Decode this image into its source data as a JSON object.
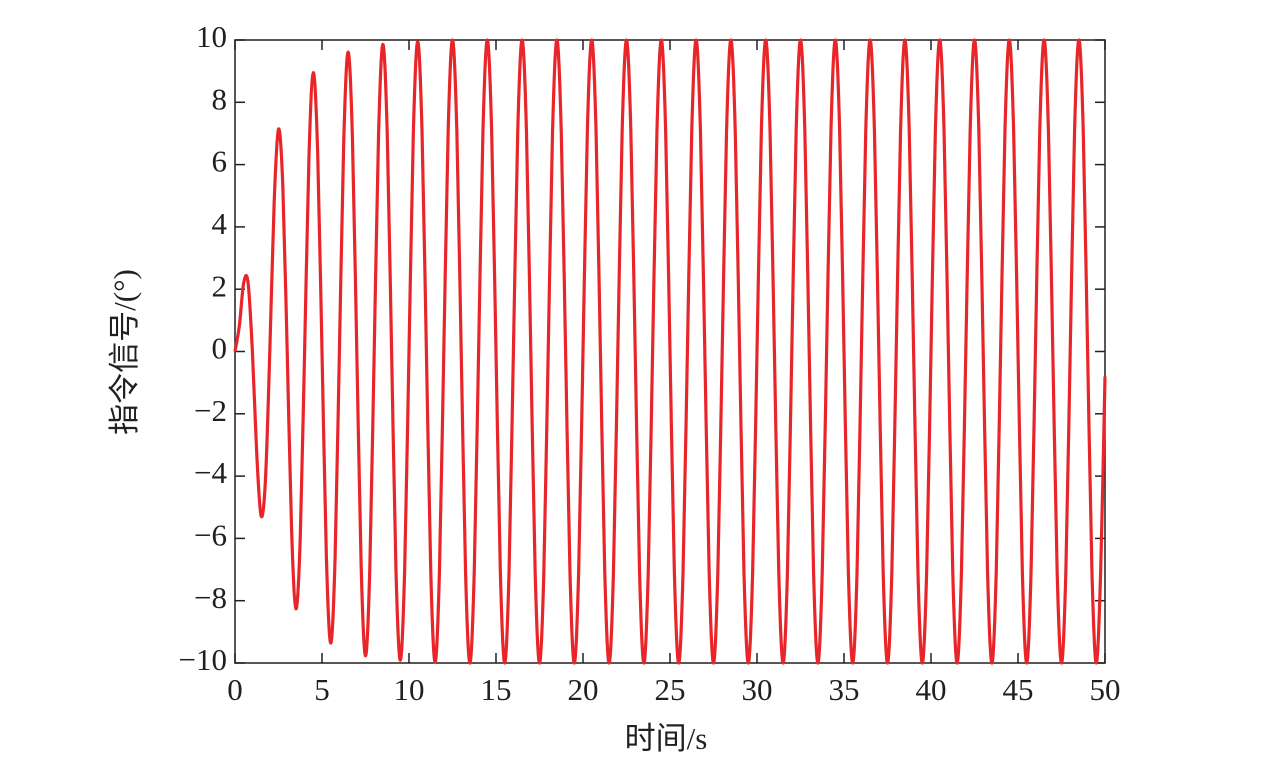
{
  "chart_data": {
    "type": "line",
    "xlabel": "时间/s",
    "ylabel": "指令信号/(°)",
    "x": [
      0,
      0.25,
      0.5,
      0.75,
      1,
      1.25,
      1.5,
      1.75,
      2,
      2.25,
      2.5,
      2.75,
      3,
      3.25,
      3.5,
      3.75,
      4,
      4.25,
      4.5,
      4.75,
      5,
      5.25,
      5.5,
      5.75,
      6,
      6.25,
      6.5,
      6.75,
      7,
      7.25,
      7.5,
      7.75,
      8,
      8.25,
      8.5,
      8.75,
      9,
      9.25,
      9.5,
      9.75,
      10,
      10.25,
      10.5,
      10.75,
      11,
      11.25,
      11.5,
      11.75,
      12,
      12.25,
      12.5,
      12.75,
      13,
      13.25,
      13.5,
      13.75,
      14,
      14.25,
      14.5,
      14.75,
      15,
      15.25,
      15.5,
      15.75,
      16,
      16.25,
      16.5,
      16.75,
      17,
      17.25,
      17.5,
      17.75,
      18,
      18.25,
      18.5,
      18.75,
      19,
      19.25,
      19.5,
      19.75,
      20,
      20.25,
      20.5,
      20.75,
      21,
      21.25,
      21.5,
      21.75,
      22,
      22.25,
      22.5,
      22.75,
      23,
      23.25,
      23.5,
      23.75,
      24,
      24.25,
      24.5,
      24.75,
      25,
      25.25,
      25.5,
      25.75,
      26,
      26.25,
      26.5,
      26.75,
      27,
      27.25,
      27.5,
      27.75,
      28,
      28.25,
      28.5,
      28.75,
      29,
      29.25,
      29.5,
      29.75,
      30,
      30.25,
      30.5,
      30.75,
      31,
      31.25,
      31.5,
      31.75,
      32,
      32.25,
      32.5,
      32.75,
      33,
      33.25,
      33.5,
      33.75,
      34,
      34.25,
      34.5,
      34.75,
      35,
      35.25,
      35.5,
      35.75,
      36,
      36.25,
      36.5,
      36.75,
      37,
      37.25,
      37.5,
      37.75,
      38,
      38.25,
      38.5,
      38.75,
      39,
      39.25,
      39.5,
      39.75,
      40,
      40.25,
      40.5,
      40.75,
      41,
      41.25,
      41.5,
      41.75,
      42,
      42.25,
      42.5,
      42.75,
      43,
      43.25,
      43.5,
      43.75,
      44,
      44.25,
      44.5,
      44.75,
      45,
      45.25,
      45.5,
      45.75,
      46,
      46.25,
      46.5,
      46.75,
      47,
      47.25,
      47.5,
      47.75,
      48,
      48.25,
      48.5,
      48.75,
      49,
      49.25,
      49.5,
      49.75,
      50
    ],
    "series": [
      {
        "color": "#e8262a",
        "values": [
          0,
          0.83,
          2.21,
          2.21,
          0,
          -3.29,
          -5.28,
          -4.12,
          0,
          4.77,
          7.14,
          5.28,
          0,
          -5.68,
          -8.26,
          -5.99,
          0,
          6.23,
          8.95,
          6.41,
          0,
          -6.56,
          -9.36,
          -6.67,
          0,
          6.76,
          9.61,
          6.83,
          0,
          -6.88,
          -9.77,
          -6.92,
          0,
          6.96,
          9.86,
          6.98,
          0,
          -7.0,
          -9.91,
          -7.02,
          0,
          7.03,
          9.95,
          7.04,
          0,
          -7.05,
          -9.97,
          -7.05,
          0,
          7.07,
          10,
          7.07,
          0,
          -7.07,
          -10,
          -7.07,
          0,
          7.07,
          10,
          7.07,
          0,
          -7.07,
          -10,
          -7.07,
          0,
          7.07,
          10,
          7.07,
          0,
          -7.07,
          -10,
          -7.07,
          0,
          7.07,
          10,
          7.07,
          0,
          -7.07,
          -10,
          -7.07,
          0,
          7.07,
          10,
          7.07,
          0,
          -7.07,
          -10,
          -7.07,
          0,
          7.07,
          10,
          7.07,
          0,
          -7.07,
          -10,
          -7.07,
          0,
          7.07,
          10,
          7.07,
          0,
          -7.07,
          -10,
          -7.07,
          0,
          7.07,
          10,
          7.07,
          0,
          -7.07,
          -10,
          -7.07,
          0,
          7.07,
          10,
          7.07,
          0,
          -7.07,
          -10,
          -7.07,
          0,
          7.07,
          10,
          7.07,
          0,
          -7.07,
          -10,
          -7.07,
          0,
          7.07,
          10,
          7.07,
          0,
          -7.07,
          -10,
          -7.07,
          0,
          7.07,
          10,
          7.07,
          0,
          -7.07,
          -10,
          -7.07,
          0,
          7.07,
          10,
          7.07,
          0,
          -7.07,
          -10,
          -7.07,
          0,
          7.07,
          10,
          7.07,
          0,
          -7.07,
          -10,
          -7.07,
          0,
          7.07,
          10,
          7.07,
          0,
          -7.07,
          -10,
          -7.07,
          0,
          7.07,
          10,
          7.07,
          0,
          -7.07,
          -10,
          -7.07,
          0,
          7.07,
          10,
          7.07,
          0,
          -7.07,
          -10,
          -7.07,
          0,
          7.07,
          10,
          7.07,
          0,
          -7.07,
          -10,
          -7.07,
          0,
          7.07,
          10,
          7.07,
          0,
          -7.07,
          -10,
          -7.07,
          -0.8
        ]
      }
    ],
    "xlim": [
      0,
      50
    ],
    "xticks": [
      0,
      5,
      10,
      15,
      20,
      25,
      30,
      35,
      40,
      45,
      50
    ],
    "ylim": [
      -10,
      10
    ],
    "yticks": [
      {
        "value": -10,
        "label": "−10"
      },
      {
        "value": -8,
        "label": "−8"
      },
      {
        "value": -6,
        "label": "−6"
      },
      {
        "value": -4,
        "label": "−4"
      },
      {
        "value": -2,
        "label": "−2"
      },
      0,
      2,
      4,
      6,
      8,
      10
    ]
  }
}
